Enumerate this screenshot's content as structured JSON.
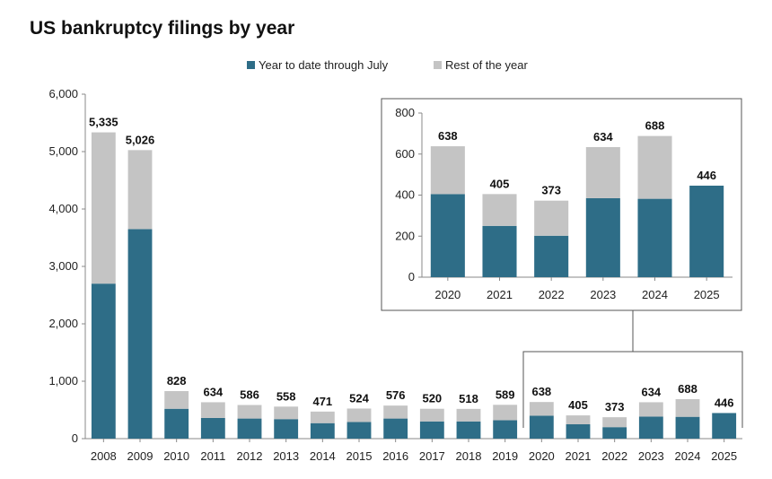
{
  "chart_data": {
    "type": "bar",
    "stacked": true,
    "title": "US bankruptcy filings by year",
    "legend": {
      "placement": "top-center",
      "entries": [
        "Year to date through July",
        "Rest of the year"
      ]
    },
    "colors": {
      "ytd": "#2e6d87",
      "rest": "#c4c4c4",
      "axis": "#888888",
      "text": "#222222"
    },
    "main": {
      "categories": [
        "2008",
        "2009",
        "2010",
        "2011",
        "2012",
        "2013",
        "2014",
        "2015",
        "2016",
        "2017",
        "2018",
        "2019",
        "2020",
        "2021",
        "2022",
        "2023",
        "2024",
        "2025"
      ],
      "series": [
        {
          "name": "Year to date through July",
          "values": [
            2700,
            3650,
            520,
            360,
            350,
            340,
            270,
            290,
            350,
            300,
            300,
            320,
            400,
            250,
            200,
            385,
            380,
            446
          ]
        },
        {
          "name": "Rest of the year",
          "values": [
            2635,
            1376,
            308,
            274,
            236,
            218,
            201,
            234,
            226,
            220,
            218,
            269,
            238,
            155,
            173,
            249,
            308,
            0
          ]
        }
      ],
      "totals": [
        "5,335",
        "5,026",
        "828",
        "634",
        "586",
        "558",
        "471",
        "524",
        "576",
        "520",
        "518",
        "589",
        "638",
        "405",
        "373",
        "634",
        "688",
        "446"
      ],
      "ylim": [
        0,
        6000
      ],
      "yticks": [
        "0",
        "1,000",
        "2,000",
        "3,000",
        "4,000",
        "5,000",
        "6,000"
      ]
    },
    "inset": {
      "categories": [
        "2020",
        "2021",
        "2022",
        "2023",
        "2024",
        "2025"
      ],
      "series": [
        {
          "name": "Year to date through July",
          "values": [
            405,
            250,
            202,
            385,
            382,
            446
          ]
        },
        {
          "name": "Rest of the year",
          "values": [
            233,
            155,
            171,
            249,
            306,
            0
          ]
        }
      ],
      "totals": [
        "638",
        "405",
        "373",
        "634",
        "688",
        "446"
      ],
      "ylim": [
        0,
        800
      ],
      "yticks": [
        "0",
        "200",
        "400",
        "600",
        "800"
      ]
    }
  }
}
